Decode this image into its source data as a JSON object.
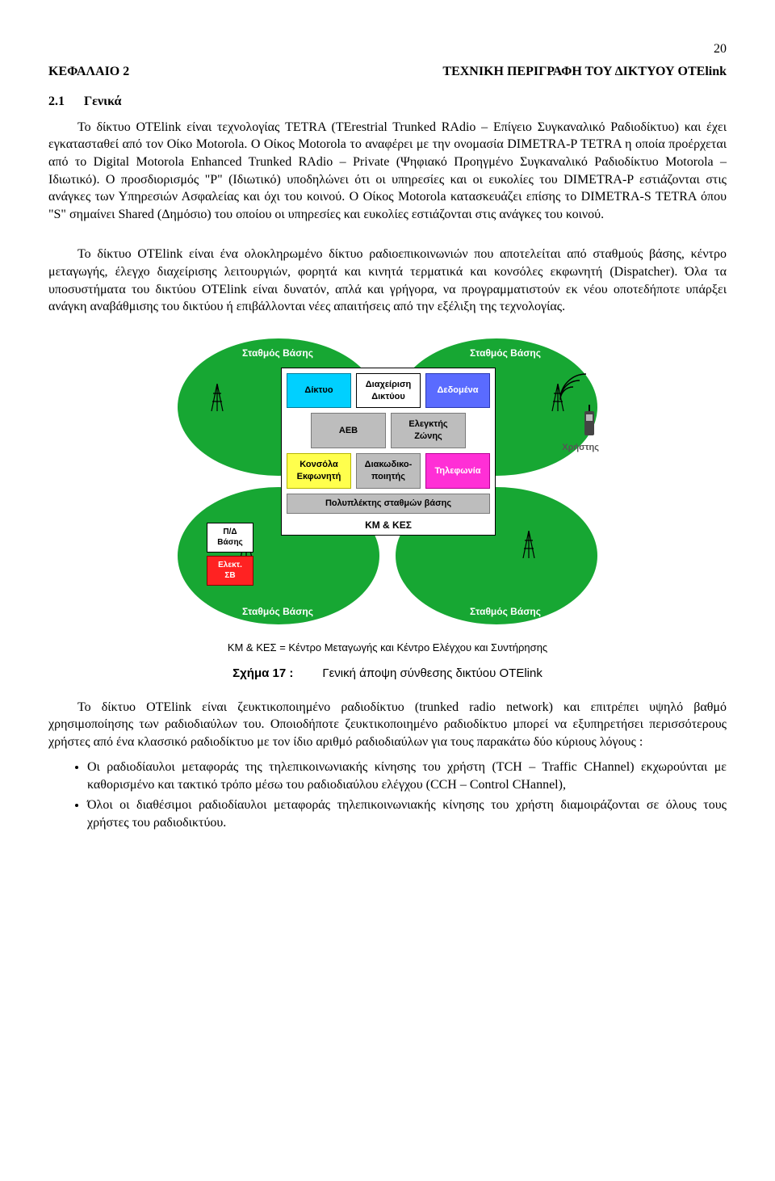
{
  "page_number": "20",
  "chapter": {
    "label": "ΚΕΦΑΛΑΙΟ 2",
    "title": "ΤΕΧΝΙΚΗ ΠΕΡΙΓΡΑΦΗ ΤΟΥ ΔΙΚΤΥΟΥ OTElink"
  },
  "section": {
    "num": "2.1",
    "title": "Γενικά"
  },
  "para1": "Το δίκτυο OTElink είναι τεχνολογίας TETRA (TErestrial Trunked RAdio – Επίγειο Συγκαναλικό Ραδιοδίκτυο) και έχει εγκατασταθεί από τον Οίκο Motorola. Ο Οίκος Motorola το αναφέρει με την ονομασία DIMETRA-P TETRA η οποία προέρχεται από το Digital Motorola Enhanced Trunked RAdio – Private (Ψηφιακό Προηγμένο Συγκαναλικό Ραδιοδίκτυο Motorola – Ιδιωτικό). Ο προσδιορισμός \"P\" (Ιδιωτικό) υποδηλώνει ότι οι υπηρεσίες και οι ευκολίες του DIMETRA-P εστιάζονται στις ανάγκες των Υπηρεσιών Ασφαλείας και όχι του κοινού. Ο Οίκος Motorola κατασκευάζει επίσης το DIMETRA-S TETRA όπου \"S\" σημαίνει Shared (Δημόσιο) του οποίου οι υπηρεσίες και ευκολίες εστιάζονται στις ανάγκες του κοινού.",
  "para2": "Το δίκτυο OTElink είναι ένα ολοκληρωμένο δίκτυο ραδιοεπικοινωνιών που αποτελείται από σταθμούς βάσης, κέντρο μεταγωγής, έλεγχο διαχείρισης λειτουργιών, φορητά και κινητά τερματικά και κονσόλες εκφωνητή (Dispatcher).  Όλα τα υποσυστήματα του δικτύου OTElink είναι δυνατόν, απλά και γρήγορα, να προγραμματιστούν εκ νέου οποτεδήποτε υπάρξει ανάγκη αναβάθμισης του δικτύου ή επιβάλλονται νέες απαιτήσεις από την εξέλιξη της τεχνολογίας.",
  "figure": {
    "type": "infographic",
    "background_color": "#ffffff",
    "lobe_color": "#17a733",
    "lobe_labels": {
      "tl": "Σταθμός Βάσης",
      "tr": "Σταθμός Βάσης",
      "bl": "Σταθμός Βάσης",
      "br": "Σταθμός Βάσης"
    },
    "user_label": "Χρήστης",
    "waves_color": "#000000",
    "tower_color": "#000000",
    "handset_color": "#333333",
    "center_panel": {
      "border": "#000000",
      "rows": [
        [
          {
            "label": "Δίκτυο",
            "bg": "#00d0ff",
            "fg": "#000000"
          },
          {
            "label": "Διαχείριση\nΔικτύου",
            "bg": "#ffffff",
            "fg": "#000000"
          },
          {
            "label": "Δεδομένα",
            "bg": "#5a6bff",
            "fg": "#ffffff"
          }
        ],
        [
          {
            "label": "AEB",
            "bg": "#bdbdbd",
            "fg": "#000000"
          },
          {
            "label": "Ελεγκτής\nΖώνης",
            "bg": "#bdbdbd",
            "fg": "#000000"
          }
        ],
        [
          {
            "label": "Κονσόλα\nΕκφωνητή",
            "bg": "#ffff4d",
            "fg": "#000000"
          },
          {
            "label": "Διακωδικο-\nποιητής",
            "bg": "#bdbdbd",
            "fg": "#000000"
          },
          {
            "label": "Τηλεφωνία",
            "bg": "#ff2fd6",
            "fg": "#ffffff"
          }
        ],
        [
          {
            "label": "Πολυπλέκτης σταθμών βάσης",
            "bg": "#bdbdbd",
            "fg": "#000000"
          }
        ]
      ],
      "caption": "ΚΜ & ΚΕΣ"
    },
    "side_panel": {
      "box1": {
        "label": "Π/Δ\nΒάσης",
        "bg": "#ffffff",
        "fg": "#000000"
      },
      "box2": {
        "label": "Ελεκτ.\nΣΒ",
        "bg": "#ff2222",
        "fg": "#ffffff"
      }
    },
    "sub_caption": "ΚΜ & ΚΕΣ = Κέντρο Μεταγωγής και Κέντρο Ελέγχου και Συντήρησης",
    "caption_label": "Σχήμα 17 :",
    "caption_text": "Γενική άποψη σύνθεσης δικτύου OTElink"
  },
  "para3": "Το δίκτυο OTElink είναι ζευκτικοποιημένο ραδιοδίκτυο (trunked radio network) και επιτρέπει υψηλό βαθμό χρησιμοποίησης των ραδιοδιαύλων του. Οποιοδήποτε ζευκτικοποιημένο ραδιοδίκτυο μπορεί να εξυπηρετήσει περισσότερους χρήστες από ένα κλασσικό ραδιοδίκτυο με τον ίδιο αριθμό ραδιοδιαύλων για τους παρακάτω δύο κύριους λόγους :",
  "bullets": [
    "Οι ραδιοδίαυλοι μεταφοράς της τηλεπικοινωνιακής κίνησης του χρήστη (TCH – Traffic CHannel) εκχωρούνται με καθορισμένο και τακτικό τρόπο μέσω του ραδιοδιαύλου ελέγχου (CCH – Control CHannel),",
    "Όλοι οι διαθέσιμοι ραδιοδίαυλοι μεταφοράς τηλεπικοινωνιακής κίνησης του χρήστη διαμοιράζονται σε όλους τους χρήστες του ραδιοδικτύου."
  ]
}
